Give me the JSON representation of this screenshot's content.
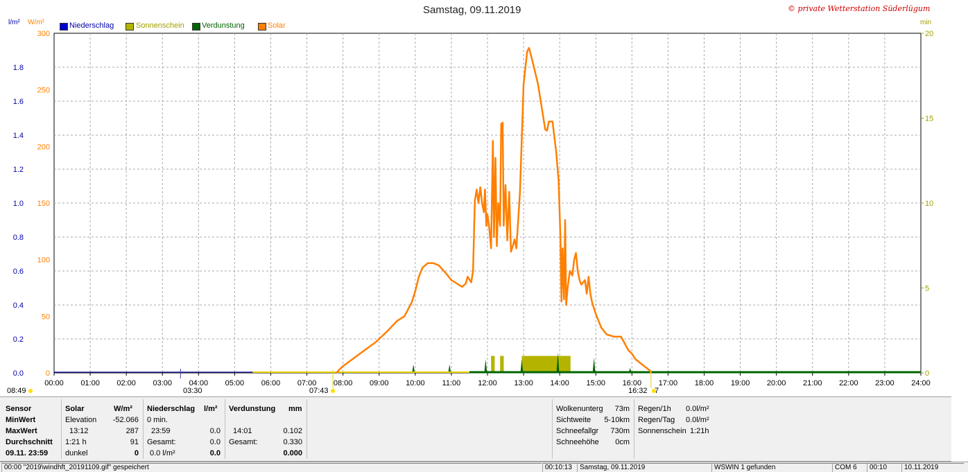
{
  "header": {
    "title": "Samstag, 09.11.2019",
    "copyright": "© private Wetterstation Süderlügum",
    "left_unit_1": "l/m²",
    "left_unit_2": "W/m²",
    "right_unit": "min"
  },
  "legend": [
    {
      "label": "Niederschlag",
      "color": "#0000cc"
    },
    {
      "label": "Sonnenschein",
      "color": "#b4b400"
    },
    {
      "label": "Verdunstung",
      "color": "#006400"
    },
    {
      "label": "Solar",
      "color": "#ff7f00"
    }
  ],
  "markers": {
    "moonrise": "08:49",
    "moon_mid": "03:30",
    "sunrise": "07:43",
    "sunset": "16:32",
    "sunset_suffix": "7"
  },
  "chart_data": {
    "type": "line",
    "title": "Samstag, 09.11.2019",
    "x_ticks": [
      "00:00",
      "01:00",
      "02:00",
      "03:00",
      "04:00",
      "05:00",
      "06:00",
      "07:00",
      "08:00",
      "09:00",
      "10:00",
      "11:00",
      "12:00",
      "13:00",
      "14:00",
      "15:00",
      "16:00",
      "17:00",
      "18:00",
      "19:00",
      "20:00",
      "21:00",
      "22:00",
      "23:00",
      "24:00"
    ],
    "xlim_hours": [
      0,
      24
    ],
    "y_solar_ticks": [
      "0",
      "50",
      "100",
      "150",
      "200",
      "250",
      "300"
    ],
    "y_solar_lim": [
      0,
      300
    ],
    "y_rain_ticks": [
      "0.0",
      "0.2",
      "0.4",
      "0.6",
      "0.8",
      "1.0",
      "1.2",
      "1.4",
      "1.6",
      "1.8"
    ],
    "y_rain_lim": [
      0,
      2.0
    ],
    "y_min_ticks": [
      "0",
      "5",
      "10",
      "15",
      "20"
    ],
    "y_min_lim": [
      0,
      20
    ],
    "grid": true,
    "series": [
      {
        "name": "Solar",
        "unit": "W/m²",
        "color": "#ff7f00",
        "points": [
          [
            7.82,
            0
          ],
          [
            7.9,
            3
          ],
          [
            8.0,
            6
          ],
          [
            8.3,
            13
          ],
          [
            8.6,
            20
          ],
          [
            8.9,
            27
          ],
          [
            9.2,
            36
          ],
          [
            9.5,
            46
          ],
          [
            9.7,
            50
          ],
          [
            9.9,
            62
          ],
          [
            10.0,
            72
          ],
          [
            10.1,
            85
          ],
          [
            10.2,
            93
          ],
          [
            10.35,
            97
          ],
          [
            10.5,
            97
          ],
          [
            10.65,
            95
          ],
          [
            10.85,
            88
          ],
          [
            11.0,
            82
          ],
          [
            11.15,
            79
          ],
          [
            11.3,
            76
          ],
          [
            11.4,
            79
          ],
          [
            11.45,
            85
          ],
          [
            11.55,
            80
          ],
          [
            11.6,
            90
          ],
          [
            11.65,
            152
          ],
          [
            11.7,
            162
          ],
          [
            11.75,
            150
          ],
          [
            11.8,
            164
          ],
          [
            11.85,
            150
          ],
          [
            11.9,
            142
          ],
          [
            11.93,
            162
          ],
          [
            11.97,
            130
          ],
          [
            12.0,
            140
          ],
          [
            12.05,
            128
          ],
          [
            12.1,
            110
          ],
          [
            12.15,
            205
          ],
          [
            12.18,
            120
          ],
          [
            12.22,
            190
          ],
          [
            12.26,
            112
          ],
          [
            12.3,
            150
          ],
          [
            12.35,
            130
          ],
          [
            12.38,
            220
          ],
          [
            12.42,
            221
          ],
          [
            12.45,
            130
          ],
          [
            12.5,
            166
          ],
          [
            12.55,
            117
          ],
          [
            12.6,
            160
          ],
          [
            12.65,
            107
          ],
          [
            12.7,
            112
          ],
          [
            12.75,
            118
          ],
          [
            12.8,
            110
          ],
          [
            12.9,
            160
          ],
          [
            13.0,
            255
          ],
          [
            13.1,
            284
          ],
          [
            13.15,
            287
          ],
          [
            13.25,
            275
          ],
          [
            13.4,
            255
          ],
          [
            13.5,
            235
          ],
          [
            13.6,
            215
          ],
          [
            13.65,
            214
          ],
          [
            13.7,
            222
          ],
          [
            13.8,
            222
          ],
          [
            13.9,
            196
          ],
          [
            13.97,
            170
          ],
          [
            14.02,
            120
          ],
          [
            14.05,
            63
          ],
          [
            14.08,
            110
          ],
          [
            14.12,
            65
          ],
          [
            14.15,
            135
          ],
          [
            14.18,
            60
          ],
          [
            14.22,
            75
          ],
          [
            14.28,
            90
          ],
          [
            14.35,
            86
          ],
          [
            14.4,
            100
          ],
          [
            14.45,
            106
          ],
          [
            14.5,
            90
          ],
          [
            14.55,
            82
          ],
          [
            14.6,
            78
          ],
          [
            14.7,
            82
          ],
          [
            14.75,
            70
          ],
          [
            14.8,
            85
          ],
          [
            14.85,
            70
          ],
          [
            14.9,
            62
          ],
          [
            15.0,
            52
          ],
          [
            15.15,
            40
          ],
          [
            15.3,
            34
          ],
          [
            15.5,
            32
          ],
          [
            15.7,
            32
          ],
          [
            15.8,
            26
          ],
          [
            15.9,
            20
          ],
          [
            16.0,
            17
          ],
          [
            16.1,
            12
          ],
          [
            16.3,
            7
          ],
          [
            16.5,
            2
          ],
          [
            16.53,
            0
          ]
        ]
      },
      {
        "name": "Sonnenschein",
        "unit": "min",
        "color": "#b4b400",
        "bars": [
          [
            12.1,
            12.2,
            1.0
          ],
          [
            12.35,
            12.45,
            1.0
          ],
          [
            12.95,
            14.3,
            1.0
          ]
        ]
      },
      {
        "name": "Verdunstung",
        "unit": "mm",
        "color": "#006400",
        "spikes": [
          [
            9.95,
            0.5
          ],
          [
            10.95,
            0.5
          ],
          [
            11.95,
            0.8
          ],
          [
            12.95,
            0.8
          ],
          [
            13.95,
            1.2
          ],
          [
            14.95,
            0.9
          ],
          [
            15.95,
            0.3
          ]
        ]
      },
      {
        "name": "Niederschlag",
        "unit": "l/m²",
        "color": "#0000cc",
        "value": 0.0
      }
    ]
  },
  "panel": {
    "sensor": {
      "header": "Sensor",
      "rows": [
        "MinWert",
        "MaxWert",
        "Durchschnitt",
        "09.11. 23:59"
      ]
    },
    "solar": {
      "header": "Solar",
      "unit": "W/m²",
      "c1": [
        "Elevation",
        "13:12",
        "1:21 h",
        "dunkel"
      ],
      "c2": [
        "-52.066",
        "287",
        "91",
        "0"
      ]
    },
    "rain": {
      "header": "Niederschlag",
      "unit": "l/m²",
      "c1": [
        "0 min.",
        "23:59",
        "Gesamt:",
        "0.0 l/m²"
      ],
      "c2": [
        "",
        "0.0",
        "0.0",
        "0.0"
      ]
    },
    "evap": {
      "header": "Verdunstung",
      "unit": "mm",
      "c1": [
        "",
        "14:01",
        "Gesamt:",
        ""
      ],
      "c2": [
        "",
        "0.102",
        "0.330",
        "0.000"
      ]
    },
    "weather_labels": [
      "Wolkenunterg",
      "Sichtweite",
      "Schneefallgr",
      "Schneehöhe"
    ],
    "weather_values": [
      "73m",
      "5-10km",
      "730m",
      "0cm"
    ],
    "rain_labels": [
      "Regen/1h",
      "Regen/Tag",
      "Sonnenschein"
    ],
    "rain_values": [
      "0.0l/m²",
      "0.0l/m²",
      "1:21h"
    ]
  },
  "status": {
    "c1": "00:00  \"2019\\windhft_20191109.gif\" gespeichert",
    "c2": "00:10:13",
    "c3": "Samstag, 09.11.2019",
    "c4": "WSWIN 1 gefunden",
    "c5": "COM 6",
    "c6": "00:10",
    "c7": "10.11.2019"
  }
}
